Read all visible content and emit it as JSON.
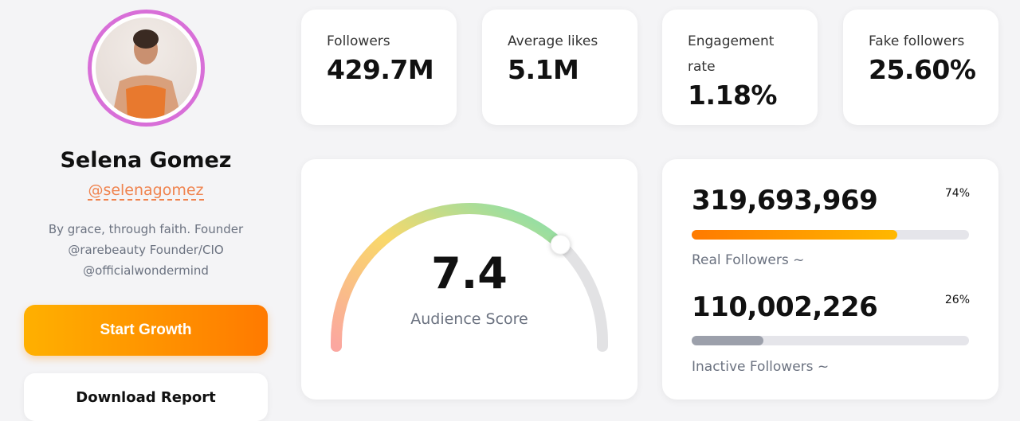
{
  "profile": {
    "name": "Selena Gomez",
    "handle": "@selenagomez",
    "bio": [
      "By grace, through faith. Founder",
      "@rarebeauty Founder/CIO",
      "@officialwondermind"
    ],
    "ring_color": "#d86fd8"
  },
  "buttons": {
    "start_growth": "Start Growth",
    "download_report": "Download Report"
  },
  "stats": [
    {
      "label": "Followers",
      "value": "429.7M"
    },
    {
      "label": "Average likes",
      "value": "5.1M"
    },
    {
      "label": "Engagement rate",
      "value": "1.18%"
    },
    {
      "label": "Fake followers",
      "value": "25.60%"
    }
  ],
  "audience": {
    "score": "7.4",
    "score_value": 7.4,
    "score_max": 10,
    "label": "Audience Score"
  },
  "breakdown": [
    {
      "count": "319,693,969",
      "percent": "74%",
      "fraction": 0.74,
      "label": "Real Followers ~",
      "color": "#ff8a00"
    },
    {
      "count": "110,002,226",
      "percent": "26%",
      "fraction": 0.26,
      "label": "Inactive Followers ~",
      "color": "#9ca0ab"
    }
  ]
}
